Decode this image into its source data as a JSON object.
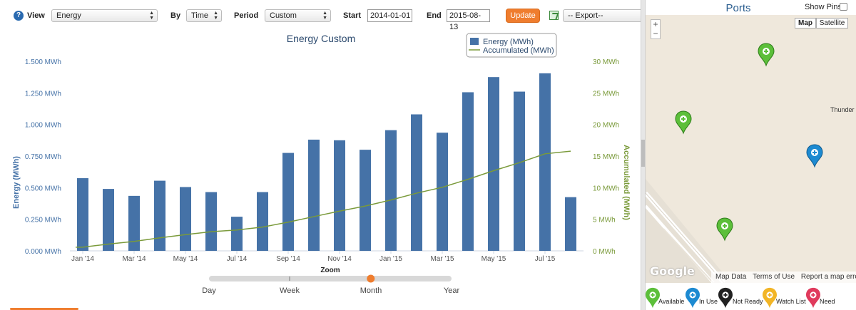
{
  "toolbar": {
    "view_label": "View",
    "view_value": "Energy",
    "by_label": "By",
    "by_value": "Time",
    "period_label": "Period",
    "period_value": "Custom",
    "start_label": "Start",
    "start_value": "2014-01-01",
    "end_label": "End",
    "end_value": "2015-08-13",
    "update_label": "Update",
    "export_value": "-- Export--",
    "help_glyph": "?"
  },
  "chart_data": {
    "type": "bar",
    "title": "Energy Custom",
    "categories": [
      "Jan 2014",
      "Feb 2014",
      "Mar 2014",
      "Apr 2014",
      "May 2014",
      "Jun 2014",
      "Jul 2014",
      "Aug 2014",
      "Sep 2014",
      "Oct 2014",
      "Nov 2014",
      "Dec 2014",
      "Jan 2015",
      "Feb 2015",
      "Mar 2015",
      "Apr 2015",
      "May 2015",
      "Jun 2015",
      "Jul 2015",
      "Aug 2015"
    ],
    "x_tick_labels": [
      "Jan '14",
      "Mar '14",
      "May '14",
      "Jul '14",
      "Sep '14",
      "Nov '14",
      "Jan '15",
      "Mar '15",
      "May '15",
      "Jul '15"
    ],
    "series": [
      {
        "name": "Energy (MWh)",
        "type": "bar",
        "axis": "left",
        "color": "#4572a7",
        "values": [
          0.575,
          0.49,
          0.435,
          0.555,
          0.505,
          0.465,
          0.27,
          0.465,
          0.775,
          0.88,
          0.875,
          0.8,
          0.955,
          1.08,
          0.935,
          1.255,
          1.375,
          1.26,
          1.405,
          0.425
        ]
      },
      {
        "name": "Accumulated (MWh)",
        "type": "line",
        "axis": "right",
        "color": "#7a9a3a",
        "values": [
          0.58,
          1.07,
          1.5,
          2.06,
          2.56,
          3.03,
          3.3,
          3.76,
          4.54,
          5.42,
          6.29,
          7.09,
          8.05,
          9.13,
          10.06,
          11.32,
          12.69,
          13.95,
          15.36,
          15.78
        ]
      }
    ],
    "y_left": {
      "label": "Energy (MWh)",
      "ticks": [
        "0.000 MWh",
        "0.250 MWh",
        "0.500 MWh",
        "0.750 MWh",
        "1.000 MWh",
        "1.250 MWh",
        "1.500 MWh"
      ],
      "range": [
        0,
        1.5
      ]
    },
    "y_right": {
      "label": "Accumulated (MWh)",
      "ticks": [
        "0 MWh",
        "5 MWh",
        "10 MWh",
        "15 MWh",
        "20 MWh",
        "25 MWh",
        "30 MWh"
      ],
      "range": [
        0,
        30
      ]
    },
    "legend": "top-right",
    "grid": false
  },
  "zoom": {
    "label": "Zoom",
    "options": [
      "Day",
      "Week",
      "Month",
      "Year"
    ],
    "selected": "Month",
    "selected_fraction": 0.667
  },
  "map": {
    "title": "Ports",
    "show_pins_label": "Show Pins",
    "zoom_in": "+",
    "zoom_out": "−",
    "type_map": "Map",
    "type_satellite": "Satellite",
    "google_logo": "Google",
    "footer": {
      "map_data": "Map Data",
      "terms": "Terms of Use",
      "report": "Report a map error"
    },
    "city_label": "Thunder",
    "pins": [
      {
        "status": "available",
        "color": "#5cbf3a"
      },
      {
        "status": "available",
        "color": "#5cbf3a"
      },
      {
        "status": "in-use",
        "color": "#1d8ad1"
      },
      {
        "status": "available",
        "color": "#5cbf3a"
      }
    ],
    "legend": [
      {
        "label": "Available",
        "color": "#5cbf3a"
      },
      {
        "label": "In Use",
        "color": "#1d8ad1"
      },
      {
        "label": "Not Ready",
        "color": "#222222"
      },
      {
        "label": "Watch List",
        "color": "#f2b526"
      },
      {
        "label": "Need",
        "color": "#e03a5c"
      }
    ]
  }
}
